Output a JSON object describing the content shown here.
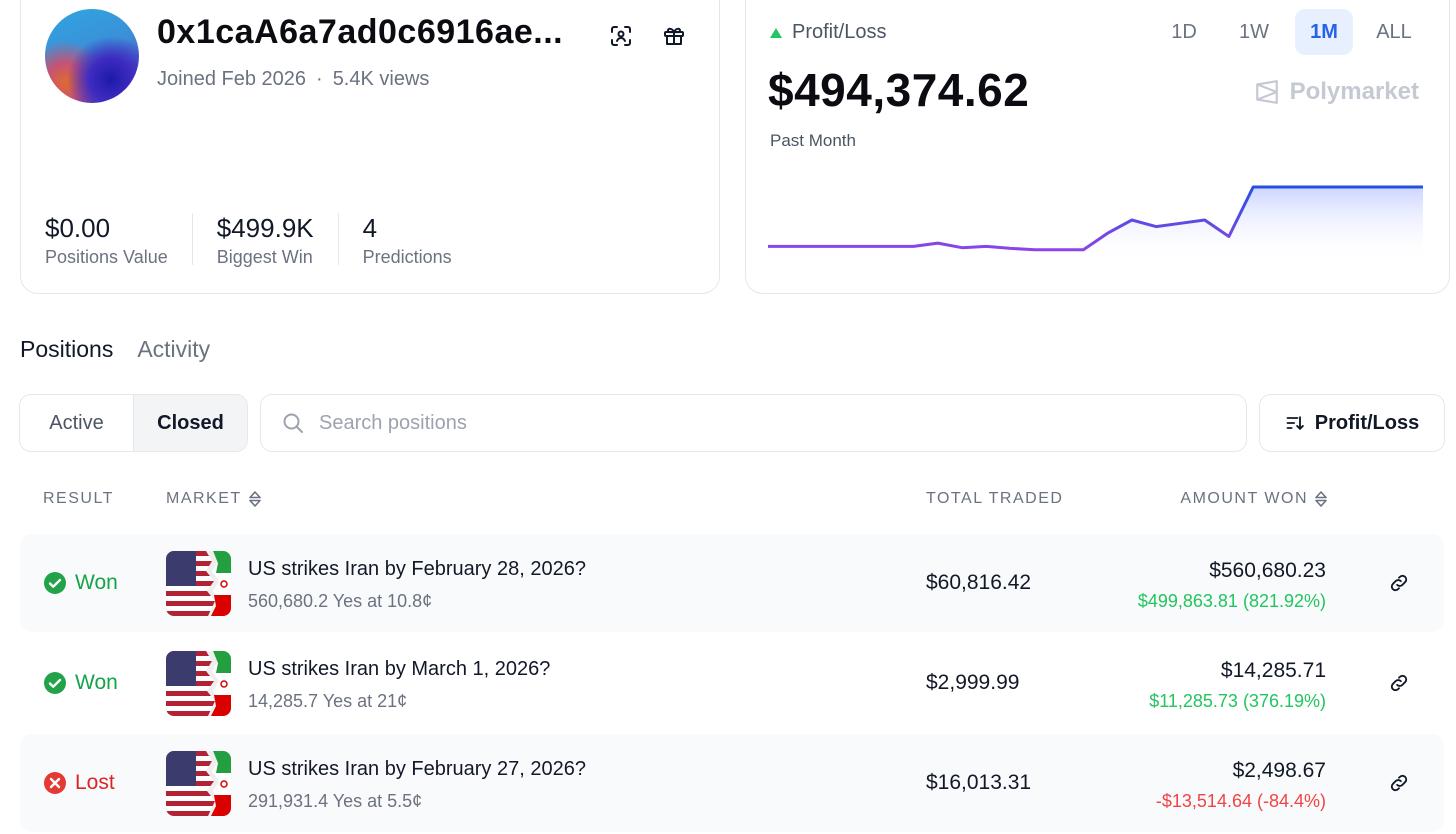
{
  "profile": {
    "username": "0x1caA6a7ad0c6916ae...",
    "joined": "Joined Feb 2026",
    "separator": "·",
    "views": "5.4K views",
    "stats": [
      {
        "value": "$0.00",
        "label": "Positions Value"
      },
      {
        "value": "$499.9K",
        "label": "Biggest Win"
      },
      {
        "value": "4",
        "label": "Predictions"
      }
    ]
  },
  "pnl": {
    "title": "Profit/Loss",
    "value": "$494,374.62",
    "period": "Past Month",
    "ranges": [
      "1D",
      "1W",
      "1M",
      "ALL"
    ],
    "active_range": "1M",
    "brand": "Polymarket",
    "colors": {
      "line_low": "#8b45e6",
      "line_high": "#2550e0",
      "fill": "#dde4ff",
      "up": "#22c55e"
    },
    "series": [
      0.1,
      0.1,
      0.1,
      0.1,
      0.1,
      0.1,
      0.1,
      0.15,
      0.08,
      0.1,
      0.07,
      0.05,
      0.05,
      0.05,
      0.3,
      0.5,
      0.4,
      0.45,
      0.5,
      0.25,
      1.0,
      1.0,
      1.0,
      1.0,
      1.0,
      1.0,
      1.0,
      1.0
    ]
  },
  "tabs": {
    "positions": "Positions",
    "activity": "Activity"
  },
  "filter": {
    "active": "Active",
    "closed": "Closed"
  },
  "search": {
    "placeholder": "Search positions"
  },
  "sort": {
    "label": "Profit/Loss"
  },
  "table": {
    "headers": {
      "result": "RESULT",
      "market": "MARKET",
      "traded": "TOTAL TRADED",
      "won": "AMOUNT WON"
    },
    "rows": [
      {
        "result": "Won",
        "status": "won",
        "title": "US strikes Iran by February 28, 2026?",
        "sub": "560,680.2 Yes at 10.8¢",
        "traded": "$60,816.42",
        "amount": "$560,680.23",
        "delta": "$499,863.81 (821.92%)"
      },
      {
        "result": "Won",
        "status": "won",
        "title": "US strikes Iran by March 1, 2026?",
        "sub": "14,285.7 Yes at 21¢",
        "traded": "$2,999.99",
        "amount": "$14,285.71",
        "delta": "$11,285.73 (376.19%)"
      },
      {
        "result": "Lost",
        "status": "lost",
        "title": "US strikes Iran by February 27, 2026?",
        "sub": "291,931.4 Yes at 5.5¢",
        "traded": "$16,013.31",
        "amount": "$2,498.67",
        "delta": "-$13,514.64 (-84.4%)"
      }
    ]
  }
}
